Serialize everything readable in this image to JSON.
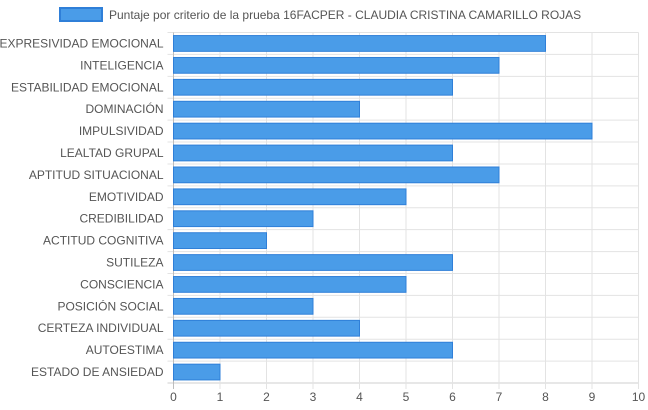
{
  "chart_data": {
    "type": "bar",
    "orientation": "horizontal",
    "series": [
      {
        "name": "Puntaje por criterio de la prueba 16FACPER - CLAUDIA CRISTINA CAMARILLO ROJAS",
        "color": "#4a9ce8",
        "border_color": "#2f7fd8",
        "values": [
          8,
          7,
          6,
          4,
          9,
          6,
          7,
          5,
          3,
          2,
          6,
          5,
          3,
          4,
          6,
          1
        ]
      }
    ],
    "categories": [
      "EXPRESIVIDAD EMOCIONAL",
      "INTELIGENCIA",
      "ESTABILIDAD EMOCIONAL",
      "DOMINACIÓN",
      "IMPULSIVIDAD",
      "LEALTAD GRUPAL",
      "APTITUD SITUACIONAL",
      "EMOTIVIDAD",
      "CREDIBILIDAD",
      "ACTITUD COGNITIVA",
      "SUTILEZA",
      "CONSCIENCIA",
      "POSICIÓN SOCIAL",
      "CERTEZA INDIVIDUAL",
      "AUTOESTIMA",
      "ESTADO DE ANSIEDAD"
    ],
    "xlim": [
      0,
      10
    ],
    "xticks": [
      "0",
      "1",
      "2",
      "3",
      "4",
      "5",
      "6",
      "7",
      "8",
      "9",
      "10"
    ],
    "grid": true,
    "legend_position": "top-center"
  }
}
